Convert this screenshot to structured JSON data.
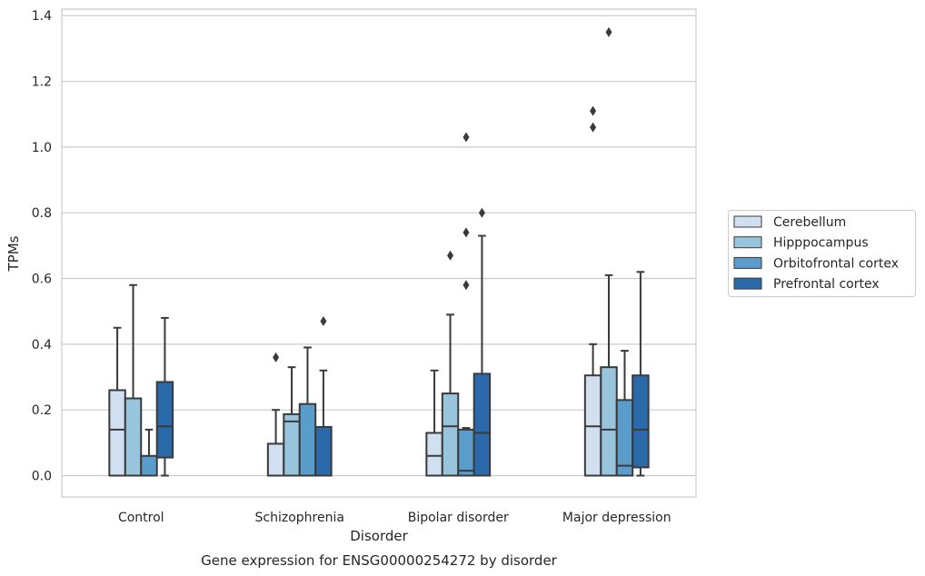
{
  "chart_data": {
    "type": "boxplot",
    "title": "Gene expression for ENSG00000254272 by disorder",
    "xlabel": "Disorder",
    "ylabel": "TPMs",
    "ylim": [
      -0.065,
      1.42
    ],
    "yticks": [
      0.0,
      0.2,
      0.4,
      0.6,
      0.8,
      1.0,
      1.2,
      1.4
    ],
    "ytick_labels": [
      "0.0",
      "0.2",
      "0.4",
      "0.6",
      "0.8",
      "1.0",
      "1.2",
      "1.4"
    ],
    "grid": "horizontal",
    "legend_position": "right",
    "categories": [
      "Control",
      "Schizophrenia",
      "Bipolar disorder",
      "Major depression"
    ],
    "series": [
      {
        "name": "Cerebellum",
        "color": "#d0e0f1",
        "boxes": [
          {
            "whislo": 0.0,
            "q1": 0.0,
            "med": 0.14,
            "q3": 0.26,
            "whishi": 0.45,
            "fliers": []
          },
          {
            "whislo": 0.0,
            "q1": 0.0,
            "med": 0.0,
            "q3": 0.097,
            "whishi": 0.2,
            "fliers": [
              0.36
            ]
          },
          {
            "whislo": 0.0,
            "q1": 0.0,
            "med": 0.06,
            "q3": 0.13,
            "whishi": 0.32,
            "fliers": []
          },
          {
            "whislo": 0.0,
            "q1": 0.0,
            "med": 0.15,
            "q3": 0.305,
            "whishi": 0.4,
            "fliers": [
              1.06,
              1.11
            ]
          }
        ]
      },
      {
        "name": "Hipppocampus",
        "color": "#98c4de",
        "boxes": [
          {
            "whislo": 0.0,
            "q1": 0.0,
            "med": 0.0,
            "q3": 0.235,
            "whishi": 0.58,
            "fliers": []
          },
          {
            "whislo": 0.0,
            "q1": 0.0,
            "med": 0.165,
            "q3": 0.187,
            "whishi": 0.33,
            "fliers": []
          },
          {
            "whislo": 0.0,
            "q1": 0.0,
            "med": 0.15,
            "q3": 0.25,
            "whishi": 0.49,
            "fliers": [
              0.67
            ]
          },
          {
            "whislo": 0.0,
            "q1": 0.0,
            "med": 0.14,
            "q3": 0.33,
            "whishi": 0.61,
            "fliers": [
              1.35
            ]
          }
        ]
      },
      {
        "name": "Orbitofrontal cortex",
        "color": "#5a9dca",
        "boxes": [
          {
            "whislo": 0.0,
            "q1": 0.0,
            "med": 0.0,
            "q3": 0.06,
            "whishi": 0.14,
            "fliers": []
          },
          {
            "whislo": 0.0,
            "q1": 0.0,
            "med": 0.0,
            "q3": 0.218,
            "whishi": 0.39,
            "fliers": []
          },
          {
            "whislo": 0.0,
            "q1": 0.0,
            "med": 0.015,
            "q3": 0.14,
            "whishi": 0.145,
            "fliers": [
              0.58,
              0.74,
              1.03
            ]
          },
          {
            "whislo": 0.0,
            "q1": 0.0,
            "med": 0.03,
            "q3": 0.23,
            "whishi": 0.38,
            "fliers": []
          }
        ]
      },
      {
        "name": "Prefrontal cortex",
        "color": "#2a6aaa",
        "boxes": [
          {
            "whislo": 0.0,
            "q1": 0.055,
            "med": 0.15,
            "q3": 0.285,
            "whishi": 0.48,
            "fliers": []
          },
          {
            "whislo": 0.0,
            "q1": 0.0,
            "med": 0.0,
            "q3": 0.148,
            "whishi": 0.32,
            "fliers": [
              0.47
            ]
          },
          {
            "whislo": 0.0,
            "q1": 0.0,
            "med": 0.13,
            "q3": 0.31,
            "whishi": 0.73,
            "fliers": [
              0.8
            ]
          },
          {
            "whislo": 0.0,
            "q1": 0.025,
            "med": 0.14,
            "q3": 0.305,
            "whishi": 0.62,
            "fliers": []
          }
        ]
      }
    ]
  }
}
